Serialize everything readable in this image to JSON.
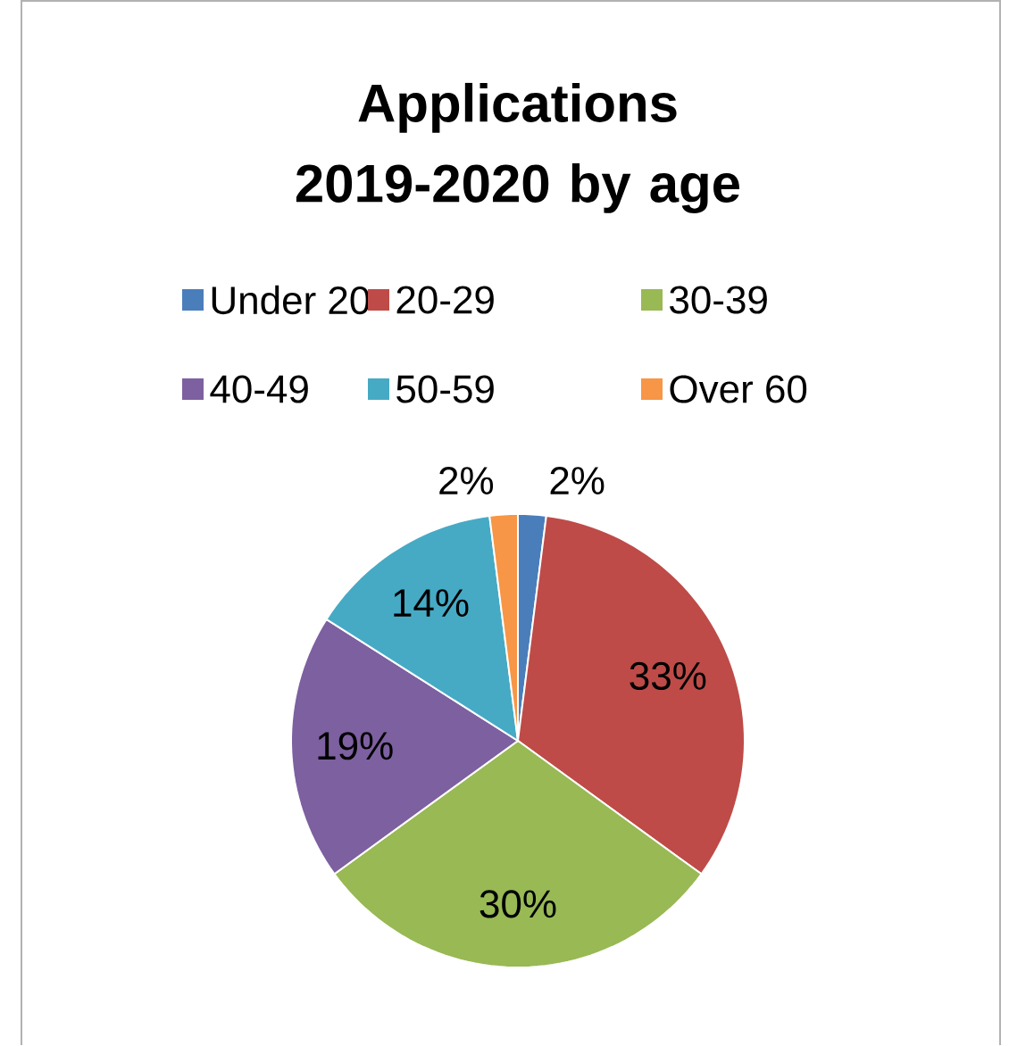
{
  "chart_data": {
    "type": "pie",
    "title": "Applications 2019-2020 by age",
    "categories": [
      "Under 20",
      "20-29",
      "30-39",
      "40-49",
      "50-59",
      "Over 60"
    ],
    "values": [
      2,
      33,
      30,
      19,
      14,
      2
    ],
    "value_labels": [
      "2%",
      "33%",
      "30%",
      "19%",
      "14%",
      "2%"
    ],
    "colors": [
      "#4a7ebb",
      "#be4b48",
      "#98b954",
      "#7d60a0",
      "#46aac5",
      "#f79646"
    ],
    "legend": "top"
  }
}
